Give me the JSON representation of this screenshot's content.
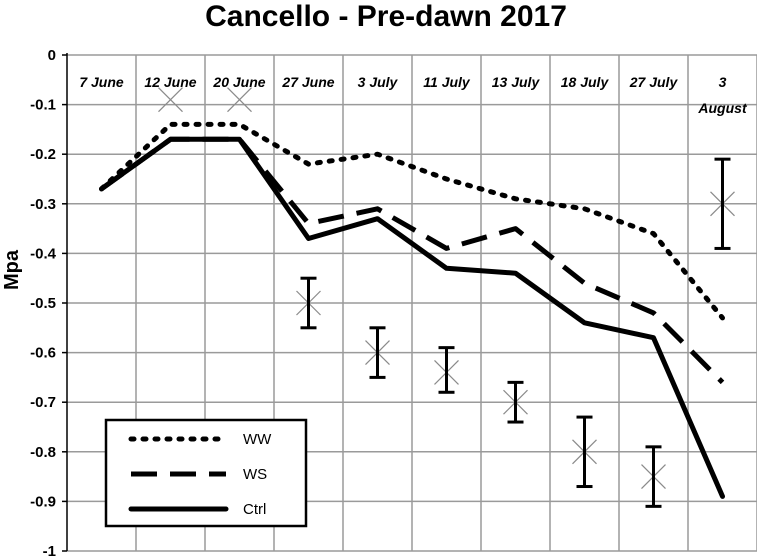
{
  "chart_data": {
    "type": "line",
    "title": "Cancello - Pre-dawn 2017",
    "xlabel": "",
    "ylabel": "Mpa",
    "ylim": [
      -1,
      0
    ],
    "yticks": [
      0,
      -0.1,
      -0.2,
      -0.3,
      -0.4,
      -0.5,
      -0.6,
      -0.7,
      -0.8,
      -0.9,
      -1
    ],
    "categories": [
      "7 June",
      "12 June",
      "20 June",
      "27 June",
      "3 July",
      "11 July",
      "13 July",
      "18 July",
      "27 July",
      "3 August"
    ],
    "x_axis_position": "top",
    "grid": true,
    "legend_position": "bottom-left",
    "series": [
      {
        "name": "WW",
        "style": "dotted",
        "values": [
          -0.27,
          -0.14,
          -0.14,
          -0.22,
          -0.2,
          -0.25,
          -0.29,
          -0.31,
          -0.36,
          -0.53
        ]
      },
      {
        "name": "WS",
        "style": "dashed",
        "values": [
          -0.27,
          -0.17,
          -0.17,
          -0.34,
          -0.31,
          -0.39,
          -0.35,
          -0.46,
          -0.52,
          -0.66
        ]
      },
      {
        "name": "Ctrl",
        "style": "solid",
        "values": [
          -0.27,
          -0.17,
          -0.17,
          -0.37,
          -0.33,
          -0.43,
          -0.44,
          -0.54,
          -0.57,
          -0.89
        ]
      }
    ],
    "markers": {
      "style": "x",
      "points": [
        {
          "category": "12 June",
          "value": -0.09
        },
        {
          "category": "20 June",
          "value": -0.09
        },
        {
          "category": "27 June",
          "value": -0.5
        },
        {
          "category": "3 July",
          "value": -0.6
        },
        {
          "category": "11 July",
          "value": -0.64
        },
        {
          "category": "13 July",
          "value": -0.7
        },
        {
          "category": "18 July",
          "value": -0.8
        },
        {
          "category": "27 July",
          "value": -0.85
        },
        {
          "category": "3 August",
          "value": -0.3
        }
      ]
    },
    "error_bars": [
      {
        "category": "27 June",
        "low": -0.55,
        "high": -0.45
      },
      {
        "category": "3 July",
        "low": -0.65,
        "high": -0.55
      },
      {
        "category": "11 July",
        "low": -0.68,
        "high": -0.59
      },
      {
        "category": "13 July",
        "low": -0.74,
        "high": -0.66
      },
      {
        "category": "18 July",
        "low": -0.87,
        "high": -0.73
      },
      {
        "category": "27 July",
        "low": -0.91,
        "high": -0.79
      },
      {
        "category": "3 August",
        "low": -0.39,
        "high": -0.21
      }
    ]
  }
}
